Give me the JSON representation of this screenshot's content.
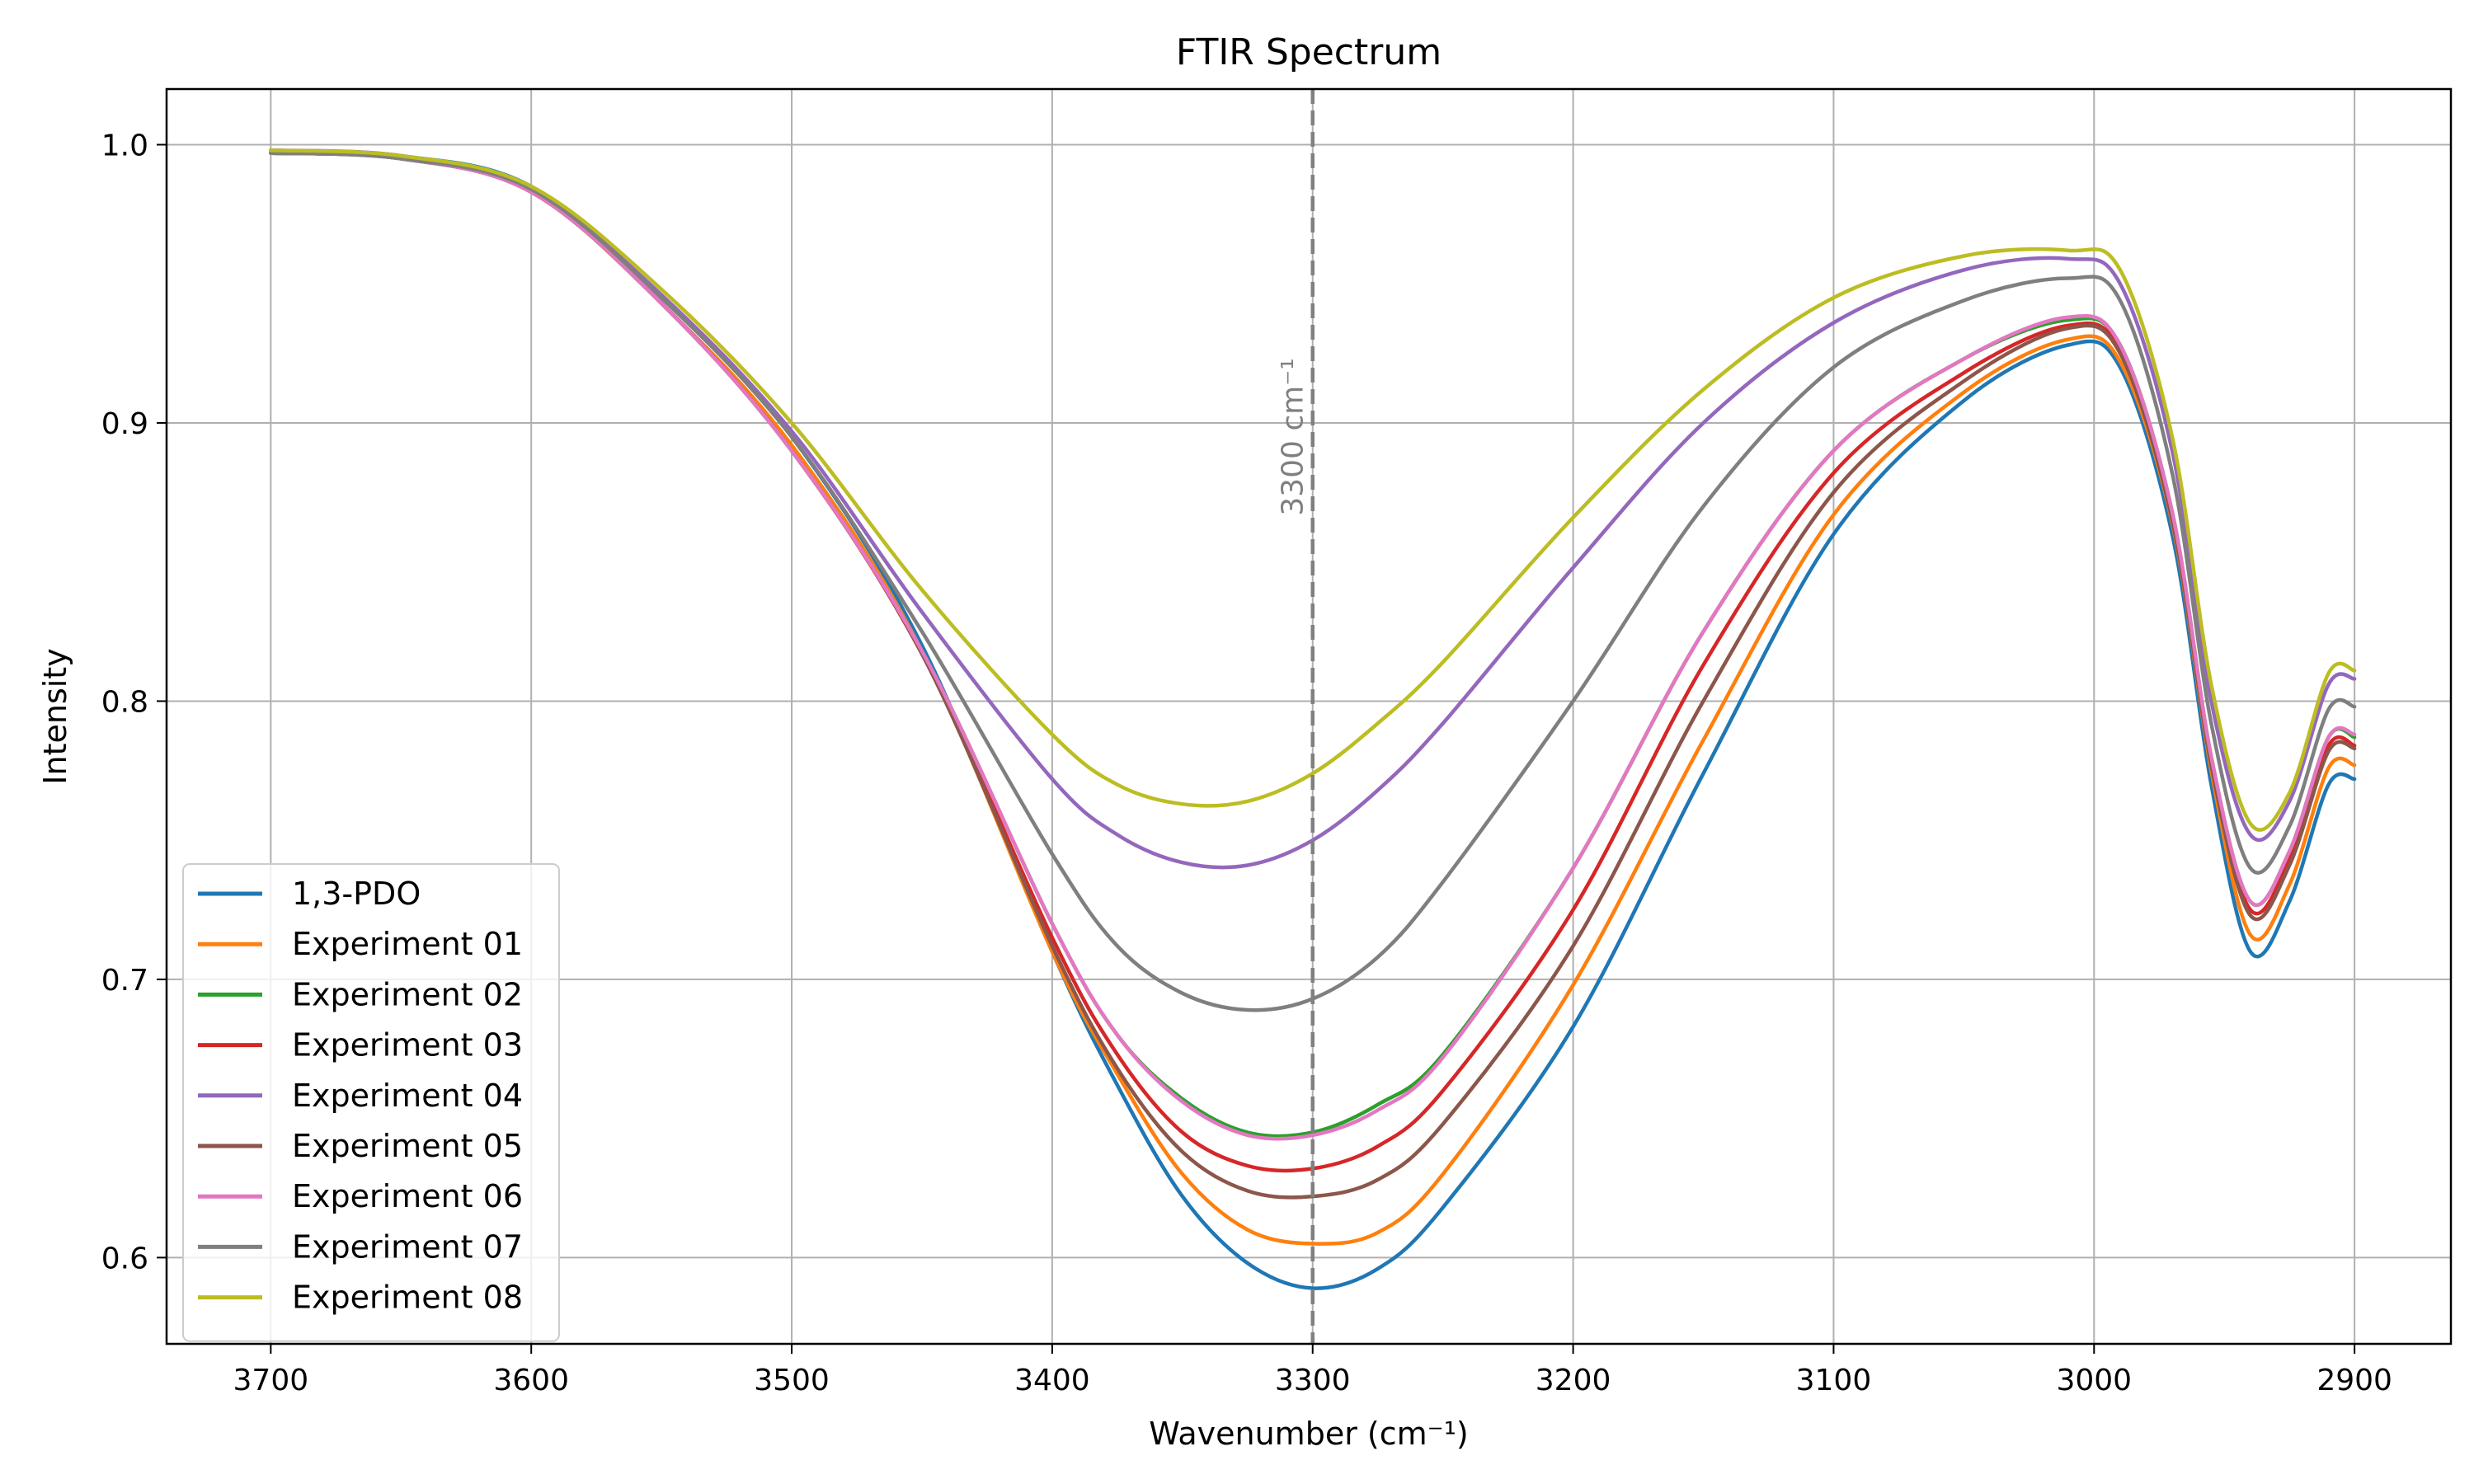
{
  "chart_data": {
    "type": "line",
    "title": "FTIR Spectrum",
    "xlabel": "Wavenumber (cm⁻¹)",
    "ylabel": "Intensity",
    "xlim": [
      3740,
      2863
    ],
    "ylim": [
      0.569,
      1.02
    ],
    "x_inverted": true,
    "xticks": [
      3700,
      3600,
      3500,
      3400,
      3300,
      3200,
      3100,
      3000,
      2900
    ],
    "yticks": [
      0.6,
      0.7,
      0.8,
      0.9,
      1.0
    ],
    "grid": true,
    "legend_position": "lower-left",
    "x": [
      3700,
      3650,
      3600,
      3550,
      3500,
      3450,
      3400,
      3375,
      3350,
      3325,
      3300,
      3275,
      3250,
      3200,
      3150,
      3100,
      3050,
      3010,
      2990,
      2970,
      2955,
      2940,
      2925,
      2910,
      2900
    ],
    "series": [
      {
        "name": "1,3-PDO",
        "color": "#1f77b4",
        "values": [
          0.998,
          0.996,
          0.985,
          0.945,
          0.895,
          0.82,
          0.71,
          0.662,
          0.622,
          0.598,
          0.589,
          0.596,
          0.618,
          0.683,
          0.774,
          0.86,
          0.908,
          0.928,
          0.92,
          0.86,
          0.77,
          0.71,
          0.728,
          0.77,
          0.772
        ]
      },
      {
        "name": "Experiment 01",
        "color": "#ff7f0e",
        "values": [
          0.997,
          0.995,
          0.983,
          0.943,
          0.892,
          0.818,
          0.71,
          0.666,
          0.63,
          0.61,
          0.605,
          0.609,
          0.63,
          0.698,
          0.786,
          0.867,
          0.911,
          0.93,
          0.922,
          0.864,
          0.775,
          0.716,
          0.734,
          0.776,
          0.777
        ]
      },
      {
        "name": "Experiment 02",
        "color": "#2ca02c",
        "values": [
          0.997,
          0.995,
          0.983,
          0.943,
          0.89,
          0.818,
          0.72,
          0.68,
          0.657,
          0.645,
          0.645,
          0.655,
          0.673,
          0.74,
          0.825,
          0.89,
          0.923,
          0.937,
          0.928,
          0.868,
          0.78,
          0.728,
          0.746,
          0.787,
          0.787
        ]
      },
      {
        "name": "Experiment 03",
        "color": "#d62728",
        "values": [
          0.997,
          0.995,
          0.983,
          0.943,
          0.89,
          0.817,
          0.715,
          0.673,
          0.645,
          0.633,
          0.632,
          0.64,
          0.66,
          0.725,
          0.813,
          0.882,
          0.918,
          0.935,
          0.926,
          0.866,
          0.778,
          0.725,
          0.743,
          0.784,
          0.784
        ]
      },
      {
        "name": "Experiment 04",
        "color": "#9467bd",
        "values": [
          0.998,
          0.996,
          0.984,
          0.946,
          0.897,
          0.832,
          0.772,
          0.752,
          0.742,
          0.741,
          0.75,
          0.768,
          0.792,
          0.848,
          0.9,
          0.936,
          0.955,
          0.959,
          0.95,
          0.89,
          0.8,
          0.752,
          0.764,
          0.806,
          0.808
        ]
      },
      {
        "name": "Experiment 05",
        "color": "#8c564b",
        "values": [
          0.997,
          0.995,
          0.983,
          0.943,
          0.89,
          0.817,
          0.712,
          0.668,
          0.638,
          0.624,
          0.622,
          0.628,
          0.648,
          0.712,
          0.8,
          0.875,
          0.915,
          0.934,
          0.925,
          0.865,
          0.777,
          0.723,
          0.741,
          0.782,
          0.783
        ]
      },
      {
        "name": "Experiment 06",
        "color": "#e377c2",
        "values": [
          0.997,
          0.995,
          0.983,
          0.943,
          0.89,
          0.818,
          0.72,
          0.68,
          0.656,
          0.644,
          0.644,
          0.653,
          0.672,
          0.74,
          0.825,
          0.89,
          0.923,
          0.938,
          0.928,
          0.868,
          0.78,
          0.728,
          0.746,
          0.787,
          0.788
        ]
      },
      {
        "name": "Experiment 07",
        "color": "#7f7f7f",
        "values": [
          0.997,
          0.995,
          0.984,
          0.945,
          0.895,
          0.825,
          0.745,
          0.712,
          0.695,
          0.689,
          0.693,
          0.708,
          0.735,
          0.8,
          0.87,
          0.92,
          0.944,
          0.952,
          0.944,
          0.882,
          0.792,
          0.74,
          0.755,
          0.797,
          0.798
        ]
      },
      {
        "name": "Experiment 08",
        "color": "#bcbd22",
        "values": [
          0.998,
          0.996,
          0.985,
          0.948,
          0.9,
          0.84,
          0.788,
          0.77,
          0.763,
          0.764,
          0.774,
          0.792,
          0.814,
          0.866,
          0.912,
          0.945,
          0.96,
          0.962,
          0.955,
          0.895,
          0.806,
          0.756,
          0.767,
          0.81,
          0.811
        ]
      }
    ],
    "annotations": [
      {
        "type": "vline",
        "x": 3300,
        "label": "3300 cm⁻¹",
        "color": "#808080"
      }
    ]
  }
}
